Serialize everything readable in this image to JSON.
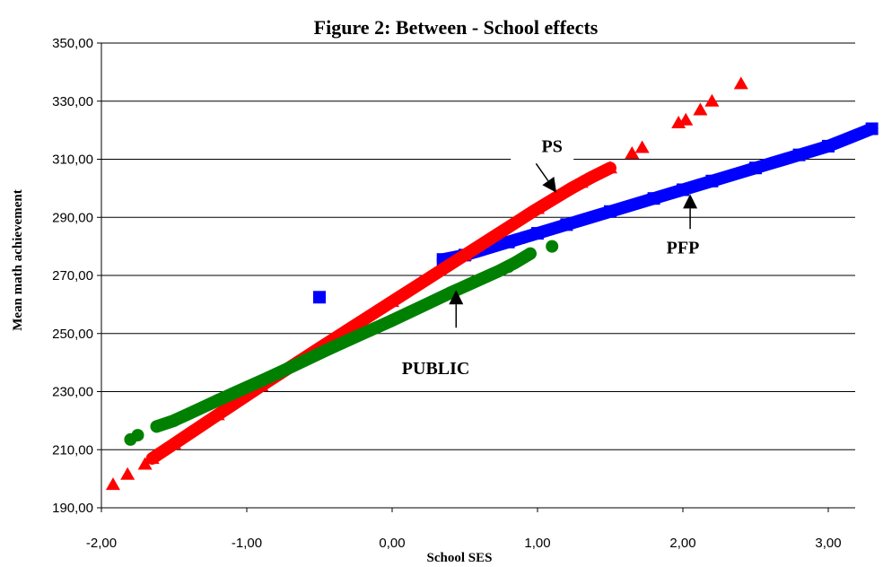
{
  "chart_data": {
    "type": "scatter",
    "title": "Figure 2:  Between - School effects",
    "xlabel": "School SES",
    "ylabel": "Mean math achievement",
    "xlim": [
      -2.0,
      3.4
    ],
    "ylim": [
      190,
      350
    ],
    "xticks": [
      -2,
      -1,
      0,
      1,
      2,
      3
    ],
    "xtick_labels": [
      "-2,00",
      "-1,00",
      "0,00",
      "1,00",
      "2,00",
      "3,00"
    ],
    "yticks": [
      190,
      210,
      230,
      250,
      270,
      290,
      310,
      330,
      350
    ],
    "ytick_labels": [
      "190,00",
      "210,00",
      "230,00",
      "250,00",
      "270,00",
      "290,00",
      "310,00",
      "330,00",
      "350,00"
    ],
    "grid": "horizontal",
    "series": [
      {
        "name": "PFP",
        "marker": "square",
        "color": "#0000ff",
        "x": [
          -0.5,
          0.35,
          0.5,
          0.8,
          1.0,
          1.2,
          1.5,
          1.8,
          2.0,
          2.2,
          2.5,
          2.8,
          3.0,
          3.3
        ],
        "y": [
          262.5,
          275.5,
          277,
          281.5,
          284.5,
          287.5,
          292,
          296.5,
          299.5,
          302.5,
          307,
          311.5,
          314.5,
          320.5
        ],
        "line_segments": [
          [
            0.35,
            0.9
          ],
          [
            0.9,
            3.3
          ]
        ]
      },
      {
        "name": "PS",
        "marker": "triangle",
        "color": "#ff0000",
        "x": [
          -1.92,
          -1.82,
          -1.7,
          -1.65,
          -1.5,
          -1.2,
          -0.9,
          -0.5,
          0.0,
          0.5,
          1.0,
          1.3,
          1.5,
          1.65,
          1.72,
          1.97,
          2.02,
          2.12,
          2.2,
          2.4
        ],
        "y": [
          198,
          201.5,
          205,
          207,
          212,
          222,
          232,
          245,
          261,
          277,
          293,
          302,
          307,
          312,
          314,
          322.5,
          323.5,
          327,
          330,
          336
        ],
        "line_segments": [
          [
            -1.65,
            1.5
          ]
        ]
      },
      {
        "name": "PUBLIC",
        "marker": "circle",
        "color": "#008000",
        "x": [
          -1.8,
          -1.75,
          -1.62,
          -1.5,
          -1.2,
          -0.8,
          -0.4,
          0.0,
          0.4,
          0.8,
          0.95,
          1.1
        ],
        "y": [
          213.5,
          215,
          218,
          220,
          227,
          236,
          245.5,
          254.5,
          264,
          273,
          277.5,
          280
        ],
        "line_segments": [
          [
            -1.62,
            0.95
          ]
        ]
      }
    ],
    "annotations": [
      {
        "text": "PS",
        "x": 1.1,
        "y": 312.5
      },
      {
        "text": "PFP",
        "x": 2.0,
        "y": 277.5
      },
      {
        "text": "PUBLIC",
        "x": 0.3,
        "y": 236
      }
    ],
    "arrows": [
      {
        "label": "PS",
        "from": [
          0.99,
          308.5
        ],
        "to": [
          1.13,
          298.5
        ]
      },
      {
        "label": "PFP",
        "from": [
          2.05,
          286
        ],
        "to": [
          2.05,
          298
        ]
      },
      {
        "label": "PUBLIC",
        "from": [
          0.44,
          252
        ],
        "to": [
          0.44,
          265
        ]
      }
    ]
  }
}
